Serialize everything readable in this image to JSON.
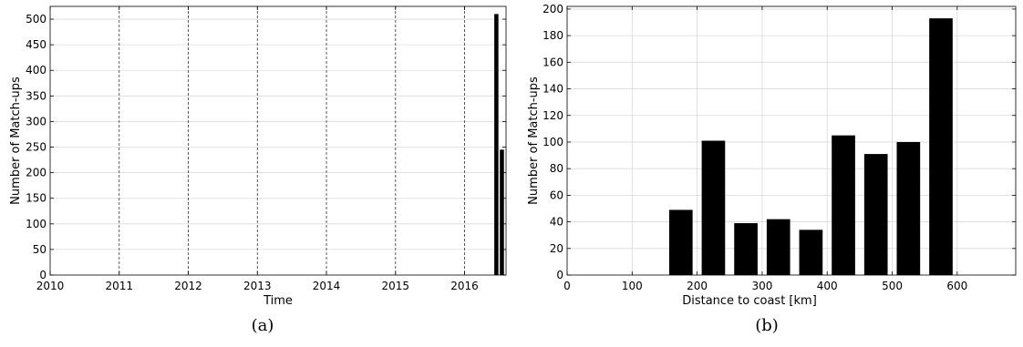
{
  "chart_data": [
    {
      "type": "bar",
      "caption": "(a)",
      "xlabel": "Time",
      "ylabel": "Number of Match-ups",
      "xlim": [
        2010,
        2016.6
      ],
      "ylim": [
        0,
        525
      ],
      "xticks": [
        2010,
        2011,
        2012,
        2013,
        2014,
        2015,
        2016
      ],
      "yticks": [
        0,
        50,
        100,
        150,
        200,
        250,
        300,
        350,
        400,
        450,
        500
      ],
      "grid": "vertical dashed at years, horizontal solid",
      "bars": [
        {
          "x": 2016.46,
          "width": 0.06,
          "value": 510
        },
        {
          "x": 2016.54,
          "width": 0.06,
          "value": 245
        }
      ],
      "bar_color": "#000000"
    },
    {
      "type": "bar",
      "caption": "(b)",
      "xlabel": "Distance to coast [km]",
      "ylabel": "Number of Match-ups",
      "xlim": [
        0,
        690
      ],
      "ylim": [
        0,
        202
      ],
      "xticks": [
        0,
        100,
        200,
        300,
        400,
        500,
        600
      ],
      "yticks": [
        0,
        20,
        40,
        60,
        80,
        100,
        120,
        140,
        160,
        180,
        200
      ],
      "grid": "on",
      "bar_width": 36,
      "categories": [
        175,
        225,
        275,
        325,
        375,
        425,
        475,
        525,
        575
      ],
      "values": [
        49,
        101,
        39,
        42,
        34,
        105,
        91,
        100,
        193
      ],
      "bar_color": "#000000"
    }
  ]
}
